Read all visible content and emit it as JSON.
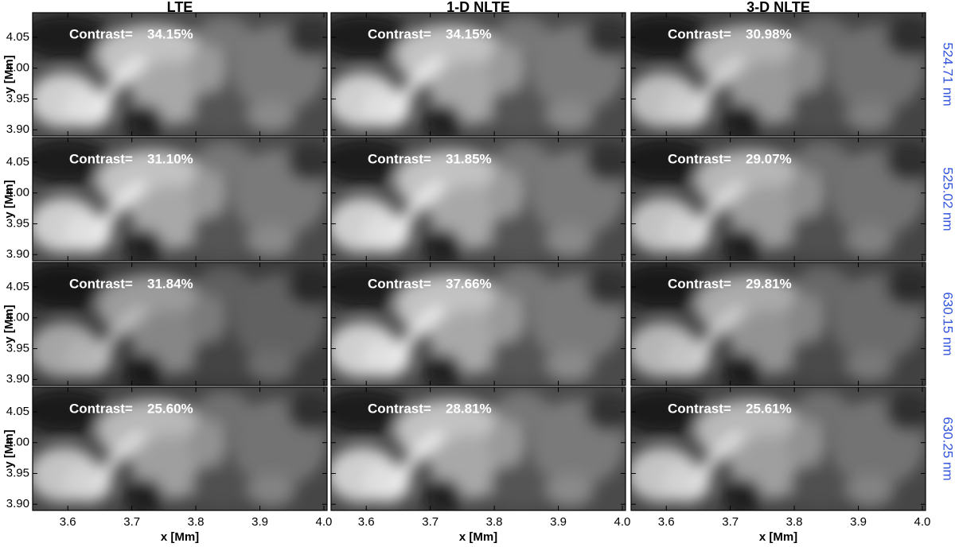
{
  "columns": [
    "LTE",
    "1-D NLTE",
    "3-D NLTE"
  ],
  "rows": [
    "524.71 nm",
    "525.02 nm",
    "630.15 nm",
    "630.25 nm"
  ],
  "contrast_label": "Contrast=",
  "contrasts": [
    [
      "34.15%",
      "34.15%",
      "30.98%"
    ],
    [
      "31.10%",
      "31.85%",
      "29.07%"
    ],
    [
      "31.84%",
      "37.66%",
      "29.81%"
    ],
    [
      "25.60%",
      "28.81%",
      "25.61%"
    ]
  ],
  "x_label": "x [Mm]",
  "y_label": "y [Mm]",
  "xlim": [
    3.545,
    4.005
  ],
  "ylim": [
    3.89,
    4.09
  ],
  "xticks": [
    3.6,
    3.7,
    3.8,
    3.9,
    {
      "value": 4,
      "label": "4.0"
    }
  ],
  "yticks": [
    4.05,
    {
      "value": 4,
      "label": "4.00"
    },
    3.95,
    {
      "value": 3.9,
      "label": "3.90"
    }
  ]
}
